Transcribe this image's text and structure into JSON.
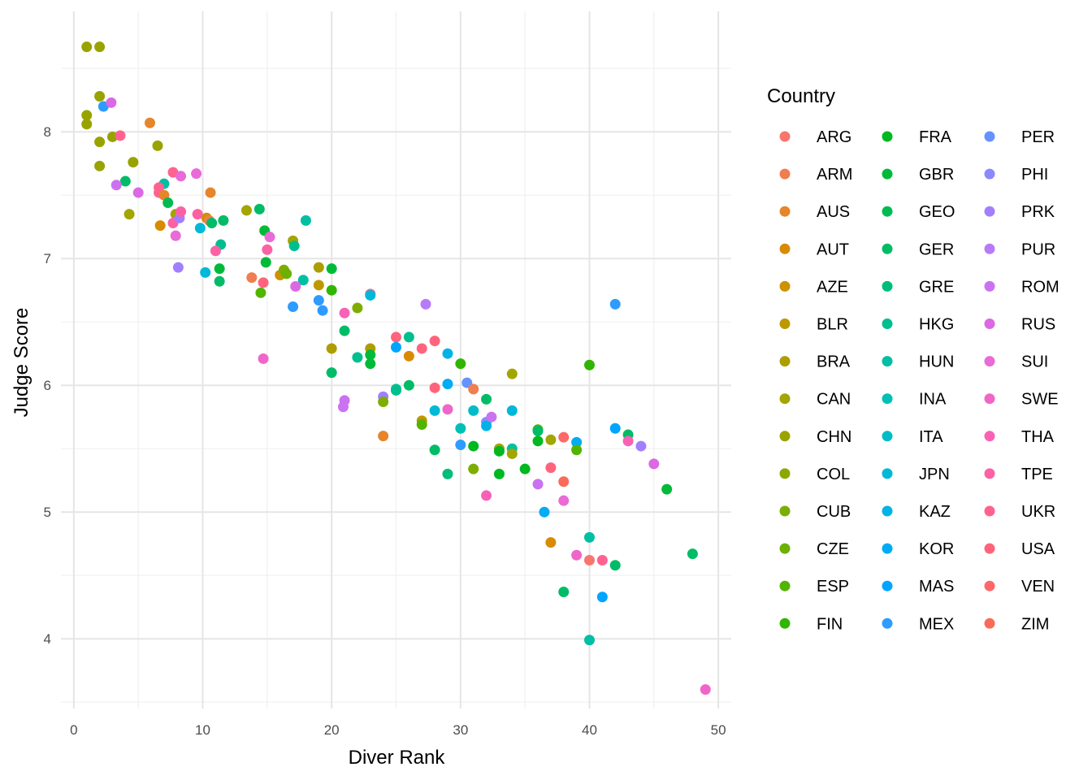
{
  "chart_data": {
    "type": "scatter",
    "title": "",
    "xlabel": "Diver Rank",
    "ylabel": "Judge Score",
    "xlim": [
      -1,
      51
    ],
    "ylim": [
      3.45,
      8.95
    ],
    "x_ticks": [
      0,
      10,
      20,
      30,
      40,
      50
    ],
    "y_ticks": [
      4,
      5,
      6,
      7,
      8
    ],
    "grid": true,
    "legend": {
      "title": "Country",
      "placement": "right",
      "columns": 3,
      "items": [
        {
          "label": "ARG",
          "color": "#F8766D"
        },
        {
          "label": "ARM",
          "color": "#F07E50"
        },
        {
          "label": "AUS",
          "color": "#E6852A"
        },
        {
          "label": "AUT",
          "color": "#D98B00"
        },
        {
          "label": "AZE",
          "color": "#CC9200"
        },
        {
          "label": "BLR",
          "color": "#BE9800"
        },
        {
          "label": "BRA",
          "color": "#AE9D00"
        },
        {
          "label": "CAN",
          "color": "#A3A500"
        },
        {
          "label": "CHN",
          "color": "#98A300"
        },
        {
          "label": "COL",
          "color": "#8BA800"
        },
        {
          "label": "CUB",
          "color": "#7DAD00"
        },
        {
          "label": "CZE",
          "color": "#6BB100"
        },
        {
          "label": "ESP",
          "color": "#53B400"
        },
        {
          "label": "FIN",
          "color": "#31B600"
        },
        {
          "label": "FRA",
          "color": "#00B81F"
        },
        {
          "label": "GBR",
          "color": "#00BA38"
        },
        {
          "label": "GEO",
          "color": "#00BB51"
        },
        {
          "label": "GER",
          "color": "#00BC66"
        },
        {
          "label": "GRE",
          "color": "#00BD7A"
        },
        {
          "label": "HKG",
          "color": "#00BF8E"
        },
        {
          "label": "HUN",
          "color": "#00BFA2"
        },
        {
          "label": "INA",
          "color": "#00BFB4"
        },
        {
          "label": "ITA",
          "color": "#00BCC7"
        },
        {
          "label": "JPN",
          "color": "#00B8D8"
        },
        {
          "label": "KAZ",
          "color": "#00B3E7"
        },
        {
          "label": "KOR",
          "color": "#00ACF3"
        },
        {
          "label": "MAS",
          "color": "#00A5FF"
        },
        {
          "label": "MEX",
          "color": "#2E9BFF"
        },
        {
          "label": "PER",
          "color": "#6592FF"
        },
        {
          "label": "PHI",
          "color": "#8A89FF"
        },
        {
          "label": "PRK",
          "color": "#A27FFF"
        },
        {
          "label": "PUR",
          "color": "#B77BF8"
        },
        {
          "label": "ROM",
          "color": "#CB72F1"
        },
        {
          "label": "RUS",
          "color": "#DB69E4"
        },
        {
          "label": "SUI",
          "color": "#E86BD7"
        },
        {
          "label": "SWE",
          "color": "#F066C8"
        },
        {
          "label": "THA",
          "color": "#F762B6"
        },
        {
          "label": "TPE",
          "color": "#FC61A4"
        },
        {
          "label": "UKR",
          "color": "#FF6290"
        },
        {
          "label": "USA",
          "color": "#FF647C"
        },
        {
          "label": "VEN",
          "color": "#FF6868"
        },
        {
          "label": "ZIM",
          "color": "#FA6A5A"
        }
      ]
    },
    "points": [
      {
        "x": 1,
        "y": 8.67,
        "c": "CHN"
      },
      {
        "x": 2,
        "y": 8.67,
        "c": "CHN"
      },
      {
        "x": 2,
        "y": 8.28,
        "c": "CHN"
      },
      {
        "x": 1,
        "y": 8.13,
        "c": "CHN"
      },
      {
        "x": 1,
        "y": 8.06,
        "c": "CHN"
      },
      {
        "x": 2,
        "y": 7.92,
        "c": "CHN"
      },
      {
        "x": 3,
        "y": 7.96,
        "c": "CHN"
      },
      {
        "x": 2,
        "y": 7.73,
        "c": "CHN"
      },
      {
        "x": 4.6,
        "y": 7.76,
        "c": "CHN"
      },
      {
        "x": 6.5,
        "y": 7.89,
        "c": "CHN"
      },
      {
        "x": 4.3,
        "y": 7.35,
        "c": "CAN"
      },
      {
        "x": 7.9,
        "y": 7.35,
        "c": "CAN"
      },
      {
        "x": 2.3,
        "y": 8.2,
        "c": "MEX"
      },
      {
        "x": 2.9,
        "y": 8.23,
        "c": "RUS"
      },
      {
        "x": 3.6,
        "y": 7.97,
        "c": "UKR"
      },
      {
        "x": 5.9,
        "y": 8.07,
        "c": "AUS"
      },
      {
        "x": 4.0,
        "y": 7.61,
        "c": "GER"
      },
      {
        "x": 3.3,
        "y": 7.58,
        "c": "ROM"
      },
      {
        "x": 5.0,
        "y": 7.52,
        "c": "RUS"
      },
      {
        "x": 7.0,
        "y": 7.59,
        "c": "HUN"
      },
      {
        "x": 6.6,
        "y": 7.56,
        "c": "UKR"
      },
      {
        "x": 6.6,
        "y": 7.52,
        "c": "UKR"
      },
      {
        "x": 7.0,
        "y": 7.5,
        "c": "AUS"
      },
      {
        "x": 7.3,
        "y": 7.44,
        "c": "GEO"
      },
      {
        "x": 7.7,
        "y": 7.68,
        "c": "UKR"
      },
      {
        "x": 8.3,
        "y": 7.65,
        "c": "SUI"
      },
      {
        "x": 9.5,
        "y": 7.67,
        "c": "SUI"
      },
      {
        "x": 10.6,
        "y": 7.52,
        "c": "AUS"
      },
      {
        "x": 6.7,
        "y": 7.26,
        "c": "AUT"
      },
      {
        "x": 7.7,
        "y": 7.28,
        "c": "TPE"
      },
      {
        "x": 8.2,
        "y": 7.32,
        "c": "PRK"
      },
      {
        "x": 8.3,
        "y": 7.37,
        "c": "TPE"
      },
      {
        "x": 7.9,
        "y": 7.18,
        "c": "SUI"
      },
      {
        "x": 9.6,
        "y": 7.35,
        "c": "TPE"
      },
      {
        "x": 9.8,
        "y": 7.24,
        "c": "JPN"
      },
      {
        "x": 10.3,
        "y": 7.32,
        "c": "AZE"
      },
      {
        "x": 10.5,
        "y": 7.3,
        "c": "ARM"
      },
      {
        "x": 10.7,
        "y": 7.28,
        "c": "GER"
      },
      {
        "x": 11.6,
        "y": 7.3,
        "c": "GER"
      },
      {
        "x": 11.4,
        "y": 7.11,
        "c": "HKG"
      },
      {
        "x": 11.0,
        "y": 7.06,
        "c": "TPE"
      },
      {
        "x": 8.1,
        "y": 6.93,
        "c": "PRK"
      },
      {
        "x": 10.2,
        "y": 6.89,
        "c": "JPN"
      },
      {
        "x": 11.3,
        "y": 6.92,
        "c": "GBR"
      },
      {
        "x": 11.3,
        "y": 6.82,
        "c": "GER"
      },
      {
        "x": 13.4,
        "y": 7.38,
        "c": "CAN"
      },
      {
        "x": 14.4,
        "y": 7.39,
        "c": "GER"
      },
      {
        "x": 14.8,
        "y": 7.22,
        "c": "GBR"
      },
      {
        "x": 15.2,
        "y": 7.17,
        "c": "SUI"
      },
      {
        "x": 15.0,
        "y": 7.07,
        "c": "TPE"
      },
      {
        "x": 14.9,
        "y": 6.97,
        "c": "GBR"
      },
      {
        "x": 13.8,
        "y": 6.85,
        "c": "ARM"
      },
      {
        "x": 14.7,
        "y": 6.81,
        "c": "USA"
      },
      {
        "x": 14.5,
        "y": 6.73,
        "c": "ESP"
      },
      {
        "x": 16.0,
        "y": 6.87,
        "c": "AZE"
      },
      {
        "x": 16.3,
        "y": 6.91,
        "c": "CUB"
      },
      {
        "x": 16.5,
        "y": 6.88,
        "c": "CZE"
      },
      {
        "x": 17.0,
        "y": 7.14,
        "c": "CAN"
      },
      {
        "x": 17.1,
        "y": 7.1,
        "c": "HKG"
      },
      {
        "x": 18.0,
        "y": 7.3,
        "c": "HUN"
      },
      {
        "x": 17.8,
        "y": 6.83,
        "c": "HUN"
      },
      {
        "x": 17.2,
        "y": 6.78,
        "c": "RUS"
      },
      {
        "x": 19.0,
        "y": 6.93,
        "c": "BRA"
      },
      {
        "x": 20.0,
        "y": 6.92,
        "c": "GBR"
      },
      {
        "x": 19.0,
        "y": 6.79,
        "c": "BLR"
      },
      {
        "x": 20.0,
        "y": 6.75,
        "c": "FIN"
      },
      {
        "x": 17.0,
        "y": 6.62,
        "c": "MEX"
      },
      {
        "x": 19.0,
        "y": 6.67,
        "c": "MEX"
      },
      {
        "x": 19.3,
        "y": 6.59,
        "c": "MEX"
      },
      {
        "x": 14.7,
        "y": 6.21,
        "c": "SWE"
      },
      {
        "x": 20.0,
        "y": 6.29,
        "c": "BRA"
      },
      {
        "x": 20.0,
        "y": 6.1,
        "c": "GER"
      },
      {
        "x": 21.0,
        "y": 6.43,
        "c": "GER"
      },
      {
        "x": 21.0,
        "y": 6.57,
        "c": "THA"
      },
      {
        "x": 22.0,
        "y": 6.61,
        "c": "CUB"
      },
      {
        "x": 23.0,
        "y": 6.72,
        "c": "UKR"
      },
      {
        "x": 23.0,
        "y": 6.71,
        "c": "JPN"
      },
      {
        "x": 22.0,
        "y": 6.22,
        "c": "HKG"
      },
      {
        "x": 23.0,
        "y": 6.29,
        "c": "BRA"
      },
      {
        "x": 23.0,
        "y": 6.24,
        "c": "GBR"
      },
      {
        "x": 23.0,
        "y": 6.17,
        "c": "GBR"
      },
      {
        "x": 21.0,
        "y": 5.88,
        "c": "ROM"
      },
      {
        "x": 20.9,
        "y": 5.83,
        "c": "ROM"
      },
      {
        "x": 24.0,
        "y": 5.91,
        "c": "PRK"
      },
      {
        "x": 24.0,
        "y": 5.87,
        "c": "CUB"
      },
      {
        "x": 24.0,
        "y": 5.6,
        "c": "AUS"
      },
      {
        "x": 25.0,
        "y": 6.38,
        "c": "USA"
      },
      {
        "x": 25.0,
        "y": 6.3,
        "c": "MAS"
      },
      {
        "x": 26.0,
        "y": 6.38,
        "c": "HKG"
      },
      {
        "x": 27.3,
        "y": 6.64,
        "c": "PUR"
      },
      {
        "x": 26.0,
        "y": 6.23,
        "c": "AUT"
      },
      {
        "x": 27.0,
        "y": 6.29,
        "c": "USA"
      },
      {
        "x": 28.0,
        "y": 6.35,
        "c": "USA"
      },
      {
        "x": 25.0,
        "y": 5.96,
        "c": "HKG"
      },
      {
        "x": 25.0,
        "y": 5.97,
        "c": "HKG"
      },
      {
        "x": 26.0,
        "y": 6.0,
        "c": "GER"
      },
      {
        "x": 27.0,
        "y": 5.72,
        "c": "BLR"
      },
      {
        "x": 27.0,
        "y": 5.69,
        "c": "ESP"
      },
      {
        "x": 28.0,
        "y": 5.98,
        "c": "USA"
      },
      {
        "x": 28.0,
        "y": 5.8,
        "c": "JPN"
      },
      {
        "x": 28.0,
        "y": 5.49,
        "c": "GER"
      },
      {
        "x": 29.0,
        "y": 6.25,
        "c": "KAZ"
      },
      {
        "x": 29.0,
        "y": 6.01,
        "c": "KOR"
      },
      {
        "x": 29.0,
        "y": 5.81,
        "c": "SWE"
      },
      {
        "x": 29.0,
        "y": 5.3,
        "c": "GRE"
      },
      {
        "x": 30.0,
        "y": 6.17,
        "c": "FIN"
      },
      {
        "x": 30.0,
        "y": 5.66,
        "c": "INA"
      },
      {
        "x": 30.0,
        "y": 5.53,
        "c": "MEX"
      },
      {
        "x": 30.5,
        "y": 6.02,
        "c": "PER"
      },
      {
        "x": 31.0,
        "y": 5.97,
        "c": "ARM"
      },
      {
        "x": 31.0,
        "y": 5.8,
        "c": "ITA"
      },
      {
        "x": 31.0,
        "y": 5.52,
        "c": "FRA"
      },
      {
        "x": 31.0,
        "y": 5.34,
        "c": "CUB"
      },
      {
        "x": 32.0,
        "y": 5.89,
        "c": "GER"
      },
      {
        "x": 32.0,
        "y": 5.71,
        "c": "PHI"
      },
      {
        "x": 32.0,
        "y": 5.68,
        "c": "KAZ"
      },
      {
        "x": 32.0,
        "y": 5.13,
        "c": "THA"
      },
      {
        "x": 32.4,
        "y": 5.75,
        "c": "ROM"
      },
      {
        "x": 33.0,
        "y": 5.5,
        "c": "CAN"
      },
      {
        "x": 33.0,
        "y": 5.48,
        "c": "FRA"
      },
      {
        "x": 33.0,
        "y": 5.3,
        "c": "FRA"
      },
      {
        "x": 34.0,
        "y": 6.09,
        "c": "CAN"
      },
      {
        "x": 34.0,
        "y": 5.8,
        "c": "JPN"
      },
      {
        "x": 34.0,
        "y": 5.5,
        "c": "HUN"
      },
      {
        "x": 34.0,
        "y": 5.46,
        "c": "CAN"
      },
      {
        "x": 35.0,
        "y": 5.34,
        "c": "FRA"
      },
      {
        "x": 36.0,
        "y": 5.65,
        "c": "ESP"
      },
      {
        "x": 36.0,
        "y": 5.64,
        "c": "GER"
      },
      {
        "x": 36.0,
        "y": 5.56,
        "c": "FRA"
      },
      {
        "x": 37.0,
        "y": 5.57,
        "c": "CAN"
      },
      {
        "x": 36.0,
        "y": 5.22,
        "c": "ROM"
      },
      {
        "x": 37.0,
        "y": 5.35,
        "c": "USA"
      },
      {
        "x": 36.5,
        "y": 5.0,
        "c": "KOR"
      },
      {
        "x": 38.0,
        "y": 5.59,
        "c": "VEN"
      },
      {
        "x": 38.0,
        "y": 5.24,
        "c": "ZIM"
      },
      {
        "x": 38.0,
        "y": 5.09,
        "c": "SUI"
      },
      {
        "x": 37.0,
        "y": 4.76,
        "c": "AUT"
      },
      {
        "x": 38.0,
        "y": 4.37,
        "c": "GER"
      },
      {
        "x": 39.0,
        "y": 5.55,
        "c": "KOR"
      },
      {
        "x": 39.0,
        "y": 5.49,
        "c": "ESP"
      },
      {
        "x": 39.0,
        "y": 4.66,
        "c": "SWE"
      },
      {
        "x": 40.0,
        "y": 6.16,
        "c": "FIN"
      },
      {
        "x": 40.0,
        "y": 4.8,
        "c": "HUN"
      },
      {
        "x": 40.0,
        "y": 4.62,
        "c": "ARG"
      },
      {
        "x": 40.0,
        "y": 3.99,
        "c": "HUN"
      },
      {
        "x": 41.0,
        "y": 4.62,
        "c": "UKR"
      },
      {
        "x": 41.0,
        "y": 4.33,
        "c": "MAS"
      },
      {
        "x": 42.0,
        "y": 6.64,
        "c": "MEX"
      },
      {
        "x": 42.0,
        "y": 5.66,
        "c": "MAS"
      },
      {
        "x": 42.0,
        "y": 4.58,
        "c": "GER"
      },
      {
        "x": 43.0,
        "y": 5.61,
        "c": "GER"
      },
      {
        "x": 43.0,
        "y": 5.56,
        "c": "THA"
      },
      {
        "x": 44.0,
        "y": 5.52,
        "c": "PRK"
      },
      {
        "x": 45.0,
        "y": 5.38,
        "c": "RUS"
      },
      {
        "x": 46.0,
        "y": 5.18,
        "c": "GBR"
      },
      {
        "x": 48.0,
        "y": 4.67,
        "c": "GER"
      },
      {
        "x": 49.0,
        "y": 3.6,
        "c": "SWE"
      }
    ]
  }
}
